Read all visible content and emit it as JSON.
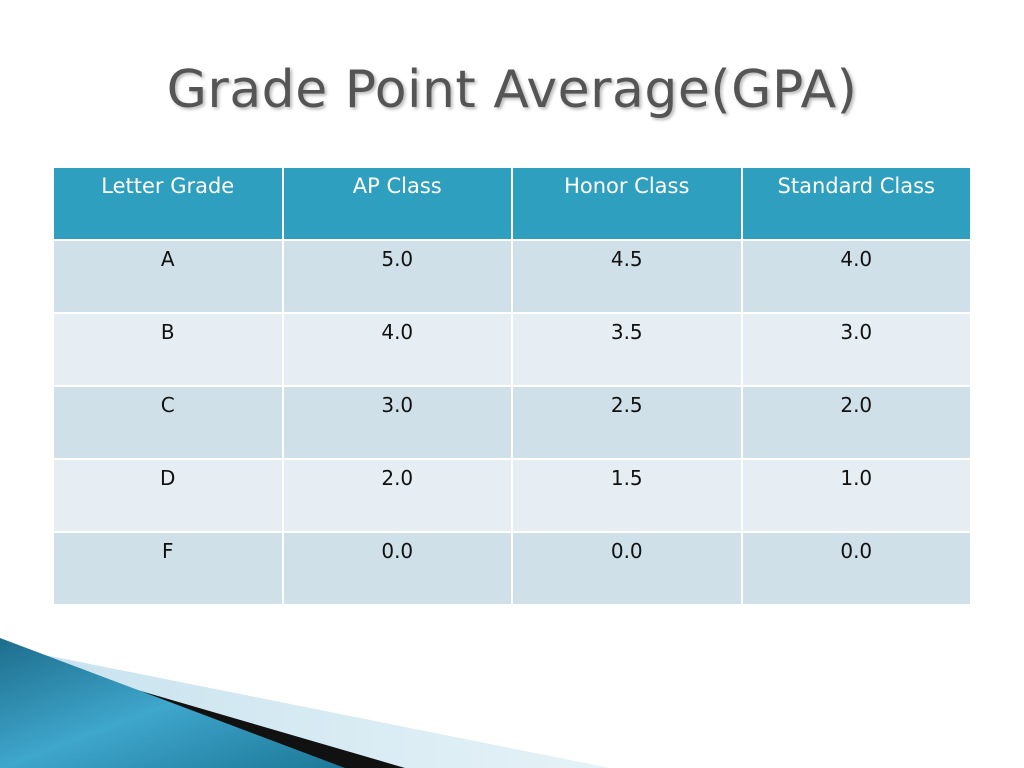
{
  "slide": {
    "title": "Grade Point Average(GPA)"
  },
  "table": {
    "headers": [
      "Letter Grade",
      "AP Class",
      "Honor Class",
      "Standard Class"
    ],
    "rows": [
      [
        "A",
        "5.0",
        "4.5",
        "4.0"
      ],
      [
        "B",
        "4.0",
        "3.5",
        "3.0"
      ],
      [
        "C",
        "3.0",
        "2.5",
        "2.0"
      ],
      [
        "D",
        "2.0",
        "1.5",
        "1.0"
      ],
      [
        "F",
        "0.0",
        "0.0",
        "0.0"
      ]
    ]
  },
  "colors": {
    "header_bg": "#2e9fbe",
    "row_odd_bg": "#cfe0e9",
    "row_even_bg": "#e7eef3",
    "title_text": "#555555"
  }
}
